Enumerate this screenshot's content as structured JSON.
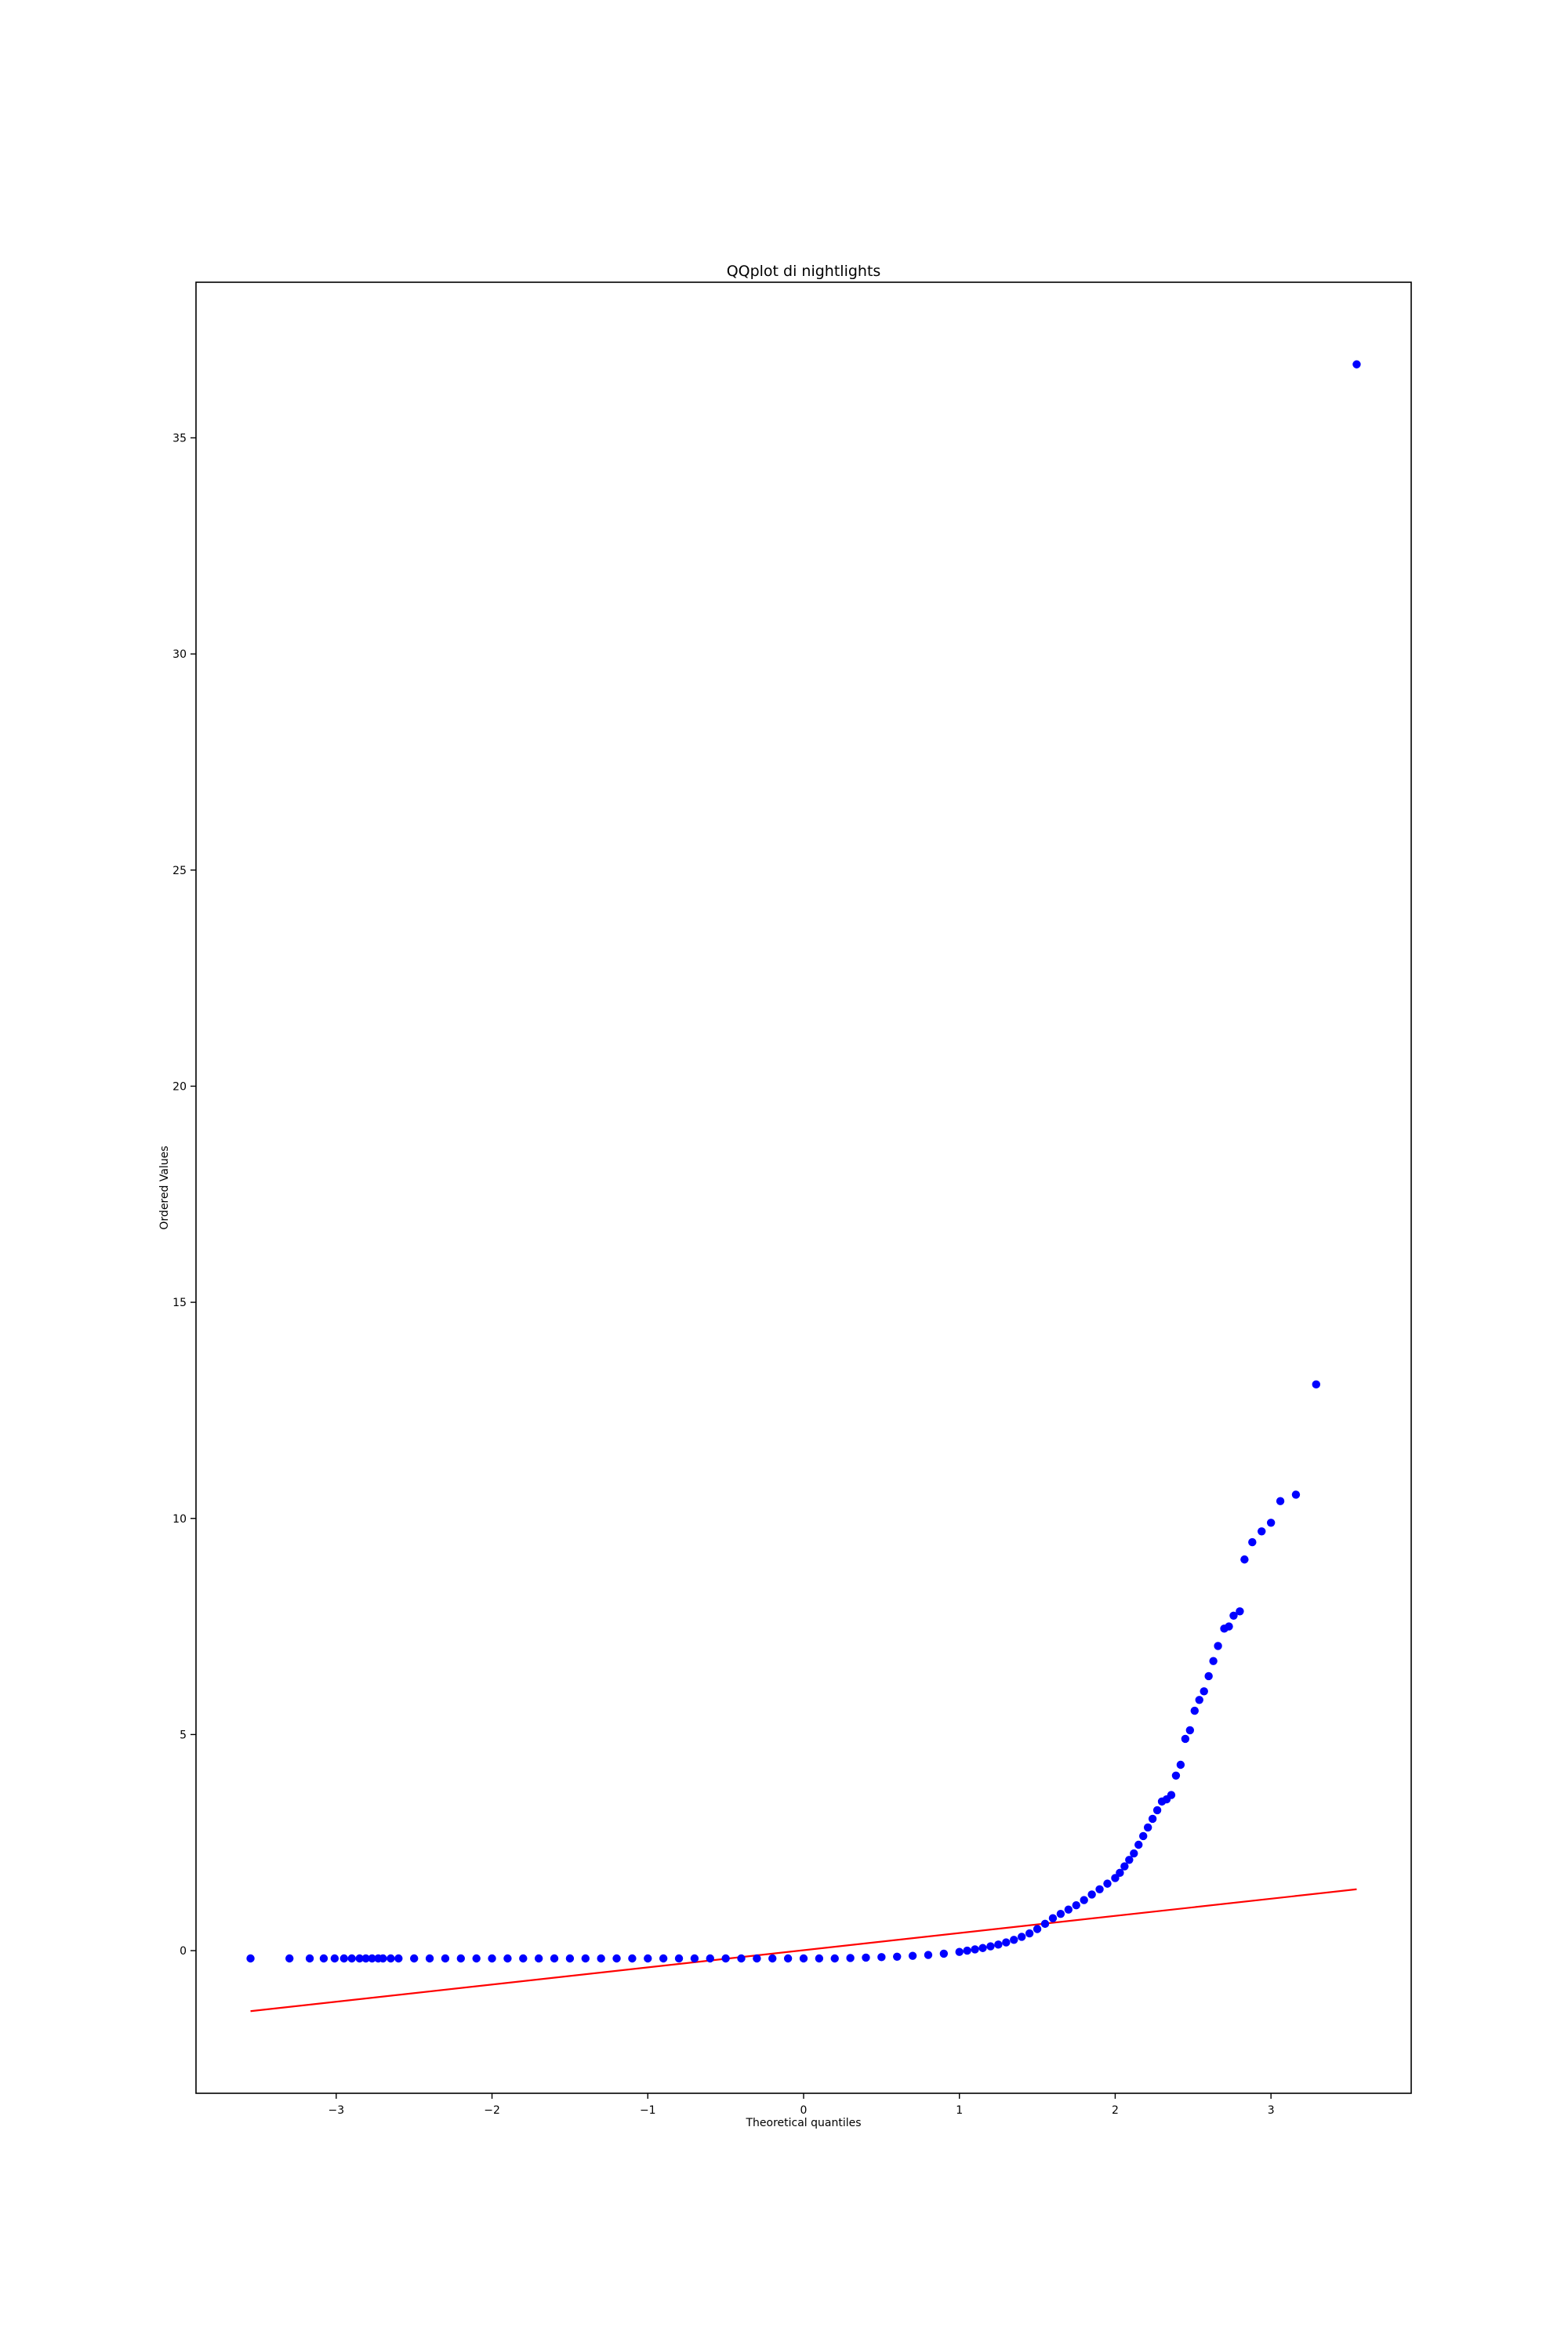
{
  "chart_data": {
    "type": "scatter",
    "title": "QQplot di nightlights",
    "xlabel": "Theoretical quantiles",
    "ylabel": "Ordered Values",
    "xlim": [
      -3.9,
      3.9
    ],
    "ylim": [
      -3.3,
      38.6
    ],
    "xticks": [
      -3,
      -2,
      -1,
      0,
      1,
      2,
      3
    ],
    "xtick_labels": [
      "−3",
      "−2",
      "−1",
      "0",
      "1",
      "2",
      "3"
    ],
    "yticks": [
      0,
      5,
      10,
      15,
      20,
      25,
      30,
      35
    ],
    "ytick_labels": [
      "0",
      "5",
      "10",
      "15",
      "20",
      "25",
      "30",
      "35"
    ],
    "grid": false,
    "legend": "none",
    "colors": {
      "points": "#0000ff",
      "fit_line": "#ff0000",
      "axes": "#000000"
    },
    "series": [
      {
        "kind": "points",
        "x": [
          -3.55,
          -3.3,
          -3.17,
          -3.08,
          -3.01,
          -2.95,
          -2.9,
          -2.85,
          -2.81,
          -2.77,
          -2.73,
          -2.7,
          -2.65,
          -2.6,
          -2.5,
          -2.4,
          -2.3,
          -2.2,
          -2.1,
          -2.0,
          -1.9,
          -1.8,
          -1.7,
          -1.6,
          -1.5,
          -1.4,
          -1.3,
          -1.2,
          -1.1,
          -1.0,
          -0.9,
          -0.8,
          -0.7,
          -0.6,
          -0.5,
          -0.4,
          -0.3,
          -0.2,
          -0.1,
          0.0,
          0.1,
          0.2,
          0.3,
          0.4,
          0.5,
          0.6,
          0.7,
          0.8,
          0.9,
          1.0,
          1.05,
          1.1,
          1.15,
          1.2,
          1.25,
          1.3,
          1.35,
          1.4,
          1.45,
          1.5,
          1.55,
          1.6,
          1.65,
          1.7,
          1.75,
          1.8,
          1.85,
          1.9,
          1.95,
          2.0,
          2.03,
          2.06,
          2.09,
          2.12,
          2.15,
          2.18,
          2.21,
          2.24,
          2.27,
          2.3,
          2.33,
          2.36,
          2.39,
          2.42,
          2.45,
          2.48,
          2.51,
          2.54,
          2.57,
          2.6,
          2.63,
          2.66,
          2.7,
          2.73,
          2.76,
          2.8,
          2.83,
          2.88,
          2.94,
          3.0,
          3.06,
          3.16,
          3.29,
          3.55
        ],
        "y": [
          -0.18,
          -0.18,
          -0.18,
          -0.18,
          -0.18,
          -0.18,
          -0.18,
          -0.18,
          -0.18,
          -0.18,
          -0.18,
          -0.18,
          -0.18,
          -0.18,
          -0.18,
          -0.18,
          -0.18,
          -0.18,
          -0.18,
          -0.18,
          -0.18,
          -0.18,
          -0.18,
          -0.18,
          -0.18,
          -0.18,
          -0.18,
          -0.18,
          -0.18,
          -0.18,
          -0.18,
          -0.18,
          -0.18,
          -0.18,
          -0.18,
          -0.18,
          -0.18,
          -0.18,
          -0.18,
          -0.18,
          -0.18,
          -0.18,
          -0.17,
          -0.16,
          -0.15,
          -0.14,
          -0.12,
          -0.1,
          -0.07,
          -0.03,
          0.0,
          0.03,
          0.06,
          0.1,
          0.14,
          0.19,
          0.25,
          0.32,
          0.4,
          0.5,
          0.62,
          0.75,
          0.85,
          0.95,
          1.05,
          1.17,
          1.3,
          1.42,
          1.55,
          1.68,
          1.8,
          1.95,
          2.1,
          2.25,
          2.45,
          2.65,
          2.85,
          3.05,
          3.25,
          3.45,
          3.5,
          3.6,
          4.05,
          4.3,
          4.9,
          5.1,
          5.55,
          5.8,
          6.0,
          6.35,
          6.7,
          7.05,
          7.45,
          7.5,
          7.75,
          7.85,
          9.05,
          9.45,
          9.7,
          9.9,
          10.4,
          10.55,
          13.1,
          36.7
        ]
      },
      {
        "kind": "fit_line",
        "x": [
          -3.55,
          3.55
        ],
        "y": [
          -1.4,
          1.42
        ]
      }
    ]
  }
}
